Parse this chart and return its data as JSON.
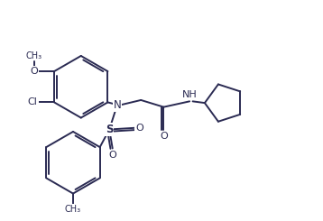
{
  "line_color": "#2a2a52",
  "bg_color": "#ffffff",
  "line_width": 1.4,
  "figsize": [
    3.58,
    2.45
  ],
  "dpi": 100,
  "xlim": [
    0,
    10
  ],
  "ylim": [
    0,
    7
  ]
}
